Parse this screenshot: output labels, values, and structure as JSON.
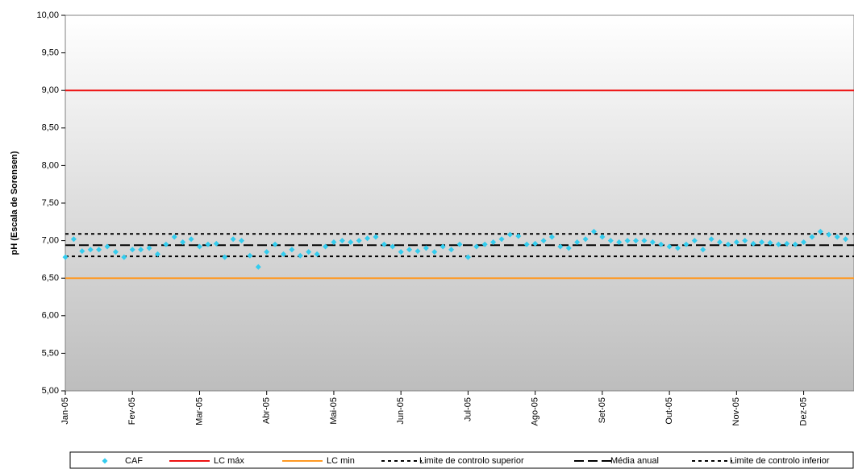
{
  "chart_data": {
    "type": "scatter",
    "y_label": "pH  (Escala de Sorensen)",
    "categories": [
      "Jan-05",
      null,
      null,
      null,
      null,
      null,
      null,
      null,
      "Fev-05",
      null,
      null,
      null,
      null,
      null,
      null,
      null,
      "Mar-05",
      null,
      null,
      null,
      null,
      null,
      null,
      null,
      "Abr-05",
      null,
      null,
      null,
      null,
      null,
      null,
      null,
      "Mai-05",
      null,
      null,
      null,
      null,
      null,
      null,
      null,
      "Jun-05",
      null,
      null,
      null,
      null,
      null,
      null,
      null,
      "Jul-05",
      null,
      null,
      null,
      null,
      null,
      null,
      null,
      "Ago-05",
      null,
      null,
      null,
      null,
      null,
      null,
      null,
      "Set-05",
      null,
      null,
      null,
      null,
      null,
      null,
      null,
      "Out-05",
      null,
      null,
      null,
      null,
      null,
      null,
      null,
      "Nov-05",
      null,
      null,
      null,
      null,
      null,
      null,
      null,
      "Dez-05",
      null,
      null,
      null,
      null,
      null
    ],
    "series": [
      {
        "name": "CAF",
        "color": "#33ccee",
        "values": [
          6.78,
          7.02,
          6.86,
          6.88,
          6.88,
          6.92,
          6.85,
          6.78,
          6.88,
          6.88,
          6.9,
          6.82,
          6.95,
          7.05,
          6.98,
          7.02,
          6.92,
          6.95,
          6.96,
          6.78,
          7.02,
          7.0,
          6.8,
          6.65,
          6.85,
          6.95,
          6.82,
          6.88,
          6.8,
          6.85,
          6.82,
          6.92,
          6.98,
          7.0,
          6.98,
          7.0,
          7.03,
          7.05,
          6.95,
          6.92,
          6.85,
          6.88,
          6.86,
          6.9,
          6.85,
          6.92,
          6.88,
          6.95,
          6.78,
          6.92,
          6.95,
          6.98,
          7.02,
          7.08,
          7.06,
          6.95,
          6.96,
          7.0,
          7.05,
          6.92,
          6.9,
          6.98,
          7.02,
          7.12,
          7.05,
          7.0,
          6.98,
          7.0,
          7.0,
          7.0,
          6.98,
          6.95,
          6.92,
          6.9,
          6.95,
          7.0,
          6.88,
          7.02,
          6.98,
          6.95,
          6.98,
          7.0,
          6.96,
          6.98,
          6.97,
          6.95,
          6.96,
          6.95,
          6.98,
          7.05,
          7.12,
          7.08,
          7.05,
          7.02
        ]
      }
    ],
    "reference_lines": [
      {
        "name": "LC máx",
        "color": "#ee1111",
        "style": "solid",
        "value": 9.0
      },
      {
        "name": "LC min",
        "color": "#ff9922",
        "style": "solid",
        "value": 6.5
      },
      {
        "name": "Limite de controlo superior",
        "color": "#000000",
        "style": "dotted",
        "value": 7.09
      },
      {
        "name": "Média anual",
        "color": "#000000",
        "style": "dashed",
        "value": 6.94
      },
      {
        "name": "Limite de controlo inferior",
        "color": "#000000",
        "style": "dotted",
        "value": 6.79
      }
    ],
    "ylim": [
      5,
      10
    ],
    "yticks": [
      {
        "value": 5,
        "label": "5,00"
      },
      {
        "value": 5.5,
        "label": "5,50"
      },
      {
        "value": 6,
        "label": "6,00"
      },
      {
        "value": 6.5,
        "label": "6,50"
      },
      {
        "value": 7,
        "label": "7,00"
      },
      {
        "value": 7.5,
        "label": "7,50"
      },
      {
        "value": 8,
        "label": "8,00"
      },
      {
        "value": 8.5,
        "label": "8,50"
      },
      {
        "value": 9,
        "label": "9,00"
      },
      {
        "value": 9.5,
        "label": "9,50"
      },
      {
        "value": 10,
        "label": "10,00"
      }
    ],
    "legend": "bottom"
  }
}
